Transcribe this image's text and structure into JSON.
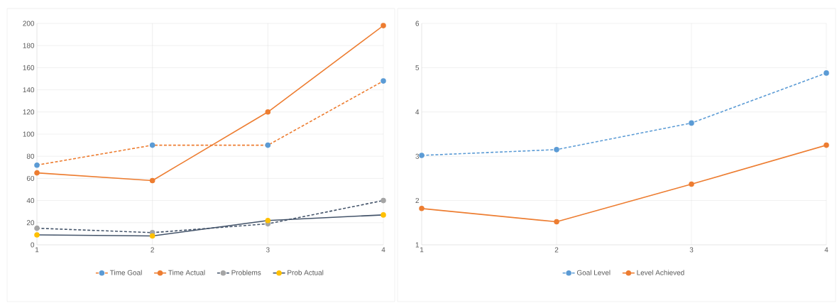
{
  "chart_data": [
    {
      "type": "line",
      "x": [
        1,
        2,
        3,
        4
      ],
      "xlim": [
        1,
        4
      ],
      "xticks": [
        1,
        2,
        3,
        4
      ],
      "ylim": [
        0,
        200
      ],
      "yticks": [
        0,
        20,
        40,
        60,
        80,
        100,
        120,
        140,
        160,
        180,
        200
      ],
      "grid": true,
      "legend": "bottom",
      "marker": "circle",
      "series": [
        {
          "name": "Time Goal",
          "color": "#ed7d31",
          "colors": [
            "#5b9bd5",
            "#5b9bd5",
            "#5b9bd5",
            "#5b9bd5"
          ],
          "line_style": "dashed",
          "values": [
            72,
            90,
            90,
            148
          ]
        },
        {
          "name": "Time Actual",
          "color": "#ed7d31",
          "colors": [
            "#ed7d31",
            "#ed7d31",
            "#ed7d31",
            "#ed7d31"
          ],
          "line_style": "solid",
          "values": [
            65,
            58,
            120,
            198
          ]
        },
        {
          "name": "Problems",
          "color": "#44546a",
          "colors": [
            "#a5a5a5",
            "#a5a5a5",
            "#a5a5a5",
            "#a5a5a5"
          ],
          "line_style": "dashed",
          "values": [
            15,
            11,
            19,
            40
          ]
        },
        {
          "name": "Prob Actual",
          "color": "#44546a",
          "colors": [
            "#ffc000",
            "#ffc000",
            "#ffc000",
            "#ffc000"
          ],
          "line_style": "solid",
          "values": [
            9,
            8,
            22,
            27
          ]
        }
      ]
    },
    {
      "type": "line",
      "x": [
        1,
        2,
        3,
        4
      ],
      "xlim": [
        1,
        4
      ],
      "xticks": [
        1,
        2,
        3,
        4
      ],
      "ylim": [
        1,
        6
      ],
      "yticks": [
        1,
        2,
        3,
        4,
        5,
        6
      ],
      "grid": true,
      "legend": "bottom",
      "marker": "circle",
      "series": [
        {
          "name": "Goal Level",
          "color": "#5b9bd5",
          "colors": [
            "#5b9bd5",
            "#5b9bd5",
            "#5b9bd5",
            "#5b9bd5"
          ],
          "line_style": "dashed",
          "values": [
            3.02,
            3.15,
            3.75,
            4.88
          ]
        },
        {
          "name": "Level Achieved",
          "color": "#ed7d31",
          "colors": [
            "#ed7d31",
            "#ed7d31",
            "#ed7d31",
            "#ed7d31"
          ],
          "line_style": "solid",
          "values": [
            1.82,
            1.52,
            2.37,
            3.25
          ]
        }
      ]
    }
  ]
}
